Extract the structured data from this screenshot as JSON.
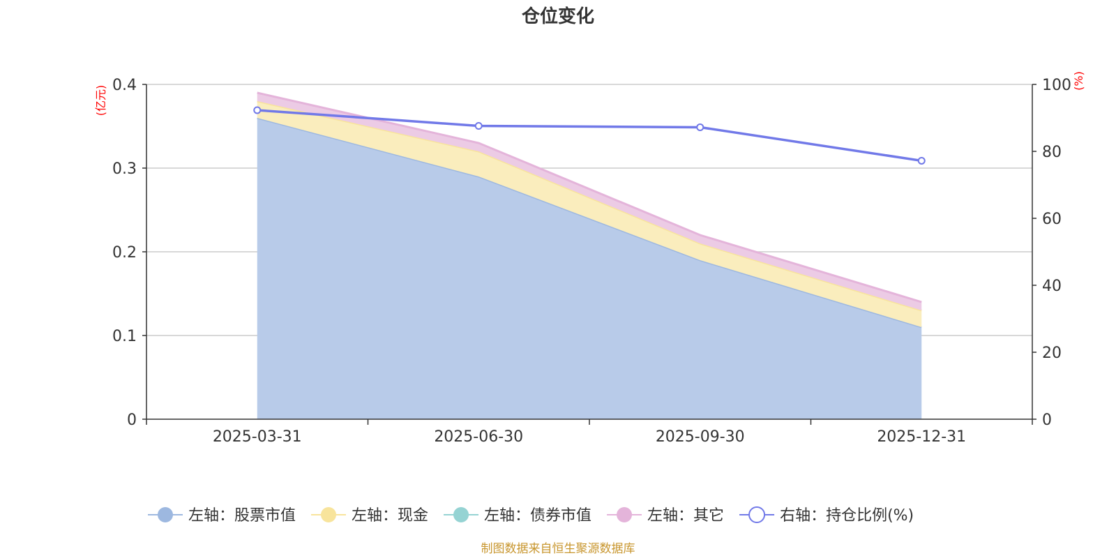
{
  "chart_data": {
    "type": "area",
    "title": "仓位变化",
    "categories": [
      "2025-03-31",
      "2025-06-30",
      "2025-09-30",
      "2025-12-31"
    ],
    "left_axis": {
      "unit": "(亿元)",
      "ylim": [
        0,
        0.4
      ],
      "ticks": [
        "0",
        "0.1",
        "0.2",
        "0.3",
        "0.4"
      ]
    },
    "right_axis": {
      "unit": "(%)",
      "ylim": [
        0,
        100
      ],
      "ticks": [
        "0",
        "20",
        "40",
        "60",
        "80",
        "100"
      ]
    },
    "stacked_series": [
      {
        "name": "左轴：股票市值",
        "values": [
          0.36,
          0.29,
          0.19,
          0.11
        ],
        "color": "#9db8e0",
        "fill": "#b8cbe9"
      },
      {
        "name": "左轴：现金",
        "values": [
          0.02,
          0.03,
          0.02,
          0.02
        ],
        "color": "#f8e49c",
        "fill": "#faedbd"
      },
      {
        "name": "左轴：债券市值",
        "values": [
          0,
          0,
          0,
          0
        ],
        "color": "#95d3d3",
        "fill": "#b5e0e0"
      },
      {
        "name": "左轴：其它",
        "values": [
          0.01,
          0.01,
          0.01,
          0.01
        ],
        "color": "#e4b4da",
        "fill": "#eccbe5"
      }
    ],
    "line_series": {
      "name": "右轴：持仓比例(%)",
      "values": [
        92.3,
        87.6,
        87.2,
        77.2
      ],
      "color": "#7179e8"
    },
    "grid": true,
    "legend_position": "bottom"
  },
  "footer": {
    "source": "制图数据来自恒生聚源数据库"
  }
}
